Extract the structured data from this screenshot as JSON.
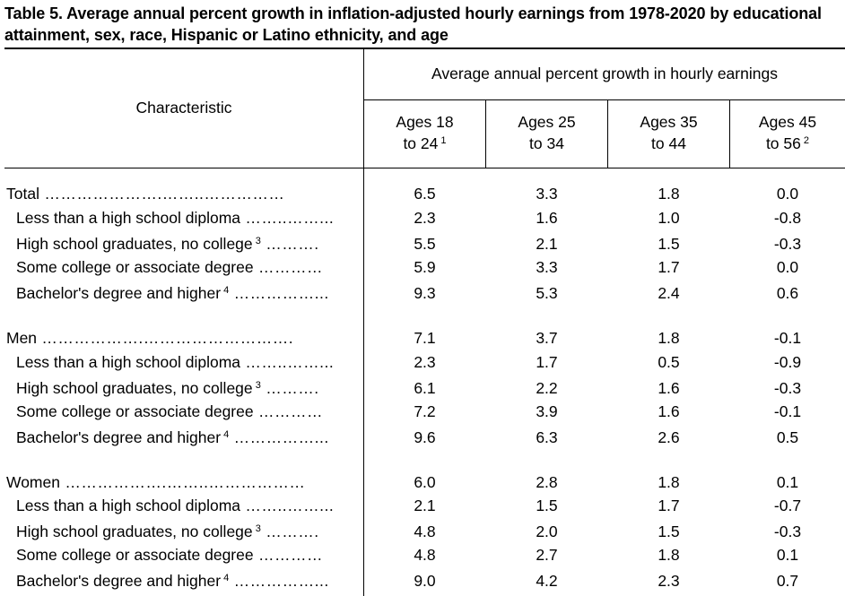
{
  "title": "Table 5.  Average annual percent growth in inflation-adjusted hourly earnings from 1978-2020 by educational attainment, sex, race, Hispanic or Latino ethnicity, and age",
  "header": {
    "characteristic": "Characteristic",
    "group": "Average annual percent growth in hourly earnings",
    "columns": [
      {
        "line1": "Ages 18",
        "line2": "to 24",
        "note": "1"
      },
      {
        "line1": "Ages 25",
        "line2": "to 34",
        "note": ""
      },
      {
        "line1": "Ages 35",
        "line2": "to 44",
        "note": ""
      },
      {
        "line1": "Ages 45",
        "line2": "to 56",
        "note": "2"
      }
    ]
  },
  "rows": [
    {
      "label": "Total",
      "note": "",
      "dots": "………………….……..……………",
      "values": [
        "6.5",
        "3.3",
        "1.8",
        "0.0"
      ]
    },
    {
      "label": "Less than a high school diploma",
      "note": "",
      "dots": "……..……...",
      "values": [
        "2.3",
        "1.6",
        "1.0",
        "-0.8"
      ]
    },
    {
      "label": "High school graduates, no college",
      "note": "3",
      "dots": "……….",
      "values": [
        "5.5",
        "2.1",
        "1.5",
        "-0.3"
      ]
    },
    {
      "label": "Some college or associate degree",
      "note": "",
      "dots": "…………",
      "values": [
        "5.9",
        "3.3",
        "1.7",
        "0.0"
      ]
    },
    {
      "label": "Bachelor's degree and higher",
      "note": "4",
      "dots": "……………...",
      "values": [
        "9.3",
        "5.3",
        "2.4",
        "0.6"
      ]
    },
    {
      "label": "Men",
      "note": "",
      "dots": "……………….……………………….",
      "values": [
        "7.1",
        "3.7",
        "1.8",
        "-0.1"
      ]
    },
    {
      "label": "Less than a high school diploma",
      "note": "",
      "dots": "……..……...",
      "values": [
        "2.3",
        "1.7",
        "0.5",
        "-0.9"
      ]
    },
    {
      "label": "High school graduates, no college",
      "note": "3",
      "dots": "……….",
      "values": [
        "6.1",
        "2.2",
        "1.6",
        "-0.3"
      ]
    },
    {
      "label": "Some college or associate degree",
      "note": "",
      "dots": "…………",
      "values": [
        "7.2",
        "3.9",
        "1.6",
        "-0.1"
      ]
    },
    {
      "label": "Bachelor's degree and higher",
      "note": "4",
      "dots": "……………...",
      "values": [
        "9.6",
        "6.3",
        "2.6",
        "0.5"
      ]
    },
    {
      "label": "Women",
      "note": "",
      "dots": "……………….……..………………",
      "values": [
        "6.0",
        "2.8",
        "1.8",
        "0.1"
      ]
    },
    {
      "label": "Less than a high school diploma",
      "note": "",
      "dots": "……..……...",
      "values": [
        "2.1",
        "1.5",
        "1.7",
        "-0.7"
      ]
    },
    {
      "label": "High school graduates, no college",
      "note": "3",
      "dots": "……….",
      "values": [
        "4.8",
        "2.0",
        "1.5",
        "-0.3"
      ]
    },
    {
      "label": "Some college or associate degree",
      "note": "",
      "dots": "…………",
      "values": [
        "4.8",
        "2.7",
        "1.8",
        "0.1"
      ]
    },
    {
      "label": "Bachelor's degree and higher",
      "note": "4",
      "dots": "……………...",
      "values": [
        "9.0",
        "4.2",
        "2.3",
        "0.7"
      ]
    }
  ]
}
